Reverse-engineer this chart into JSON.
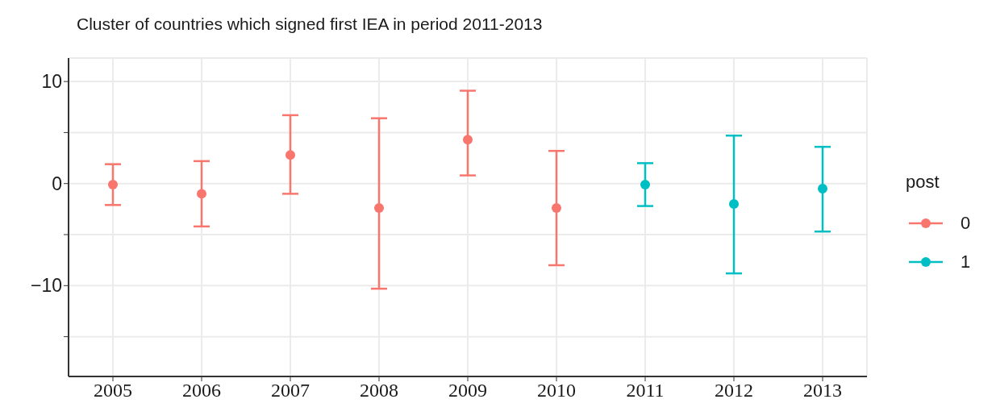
{
  "chart_data": {
    "type": "scatter",
    "title": "Cluster of countries which signed first IEA in period 2011-2013",
    "categories": [
      "2005",
      "2006",
      "2007",
      "2008",
      "2009",
      "2010",
      "2011",
      "2012",
      "2013"
    ],
    "series": [
      {
        "name": "0",
        "color": "#f8766d",
        "values": [
          -0.1,
          -1.0,
          2.8,
          -2.4,
          4.3,
          -2.4,
          null,
          null,
          null
        ],
        "errors": [
          [
            -2.1,
            1.9
          ],
          [
            -4.2,
            2.2
          ],
          [
            -1.0,
            6.7
          ],
          [
            -10.3,
            6.4
          ],
          [
            0.8,
            9.1
          ],
          [
            -8.0,
            3.2
          ],
          null,
          null,
          null
        ]
      },
      {
        "name": "1",
        "color": "#00bfc4",
        "values": [
          null,
          null,
          null,
          null,
          null,
          null,
          -0.1,
          -2.0,
          -0.5
        ],
        "errors": [
          null,
          null,
          null,
          null,
          null,
          null,
          [
            -2.2,
            2.0
          ],
          [
            -8.8,
            4.7
          ],
          [
            -4.7,
            3.6
          ]
        ]
      }
    ],
    "ylim": [
      -18.9,
      12.3
    ],
    "yticks": [
      {
        "value": -15,
        "label": null
      },
      {
        "value": -10,
        "label": "−10"
      },
      {
        "value": -5,
        "label": null
      },
      0,
      {
        "value": 5,
        "label": null
      },
      10
    ],
    "grid": true,
    "legend": "right",
    "legend_title": "post",
    "marker": "circle"
  }
}
